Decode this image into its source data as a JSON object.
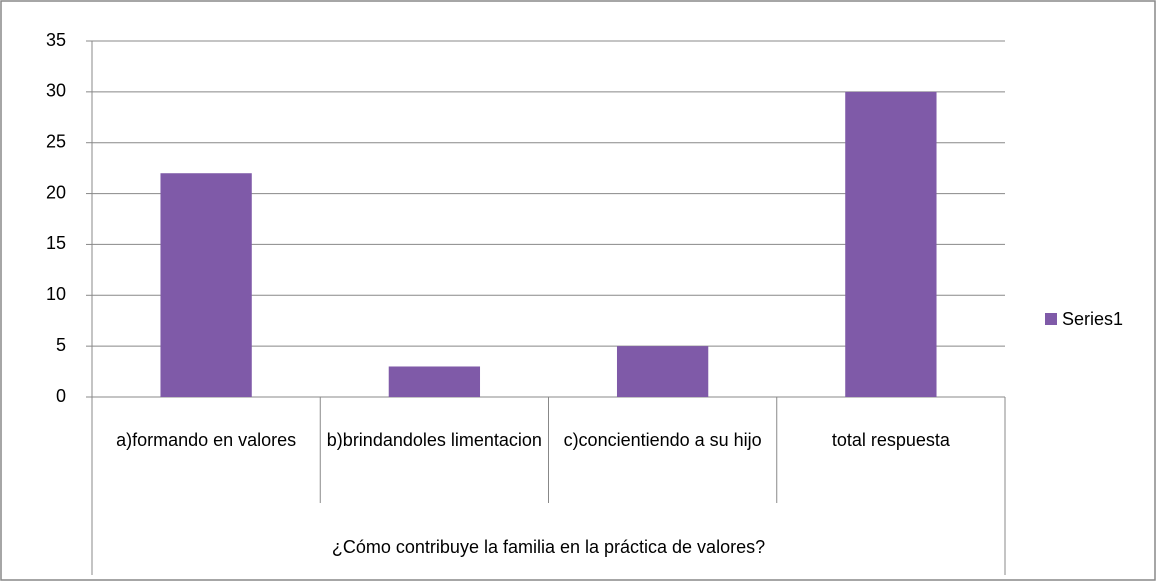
{
  "chart_data": {
    "type": "bar",
    "categories": [
      "a)formando en valores",
      "b)brindandoles limentacion",
      "c)concientiendo a su hijo",
      "total respuesta"
    ],
    "xlabel": "¿Cómo contribuye la familia en la práctica de valores?",
    "series": [
      {
        "name": "Series1",
        "color": "#7f5aa8",
        "values": [
          22,
          3,
          5,
          30
        ]
      }
    ],
    "ylim": [
      0,
      35
    ],
    "yticks": [
      0,
      5,
      10,
      15,
      20,
      25,
      30,
      35
    ],
    "grid": true,
    "legend": "right"
  }
}
